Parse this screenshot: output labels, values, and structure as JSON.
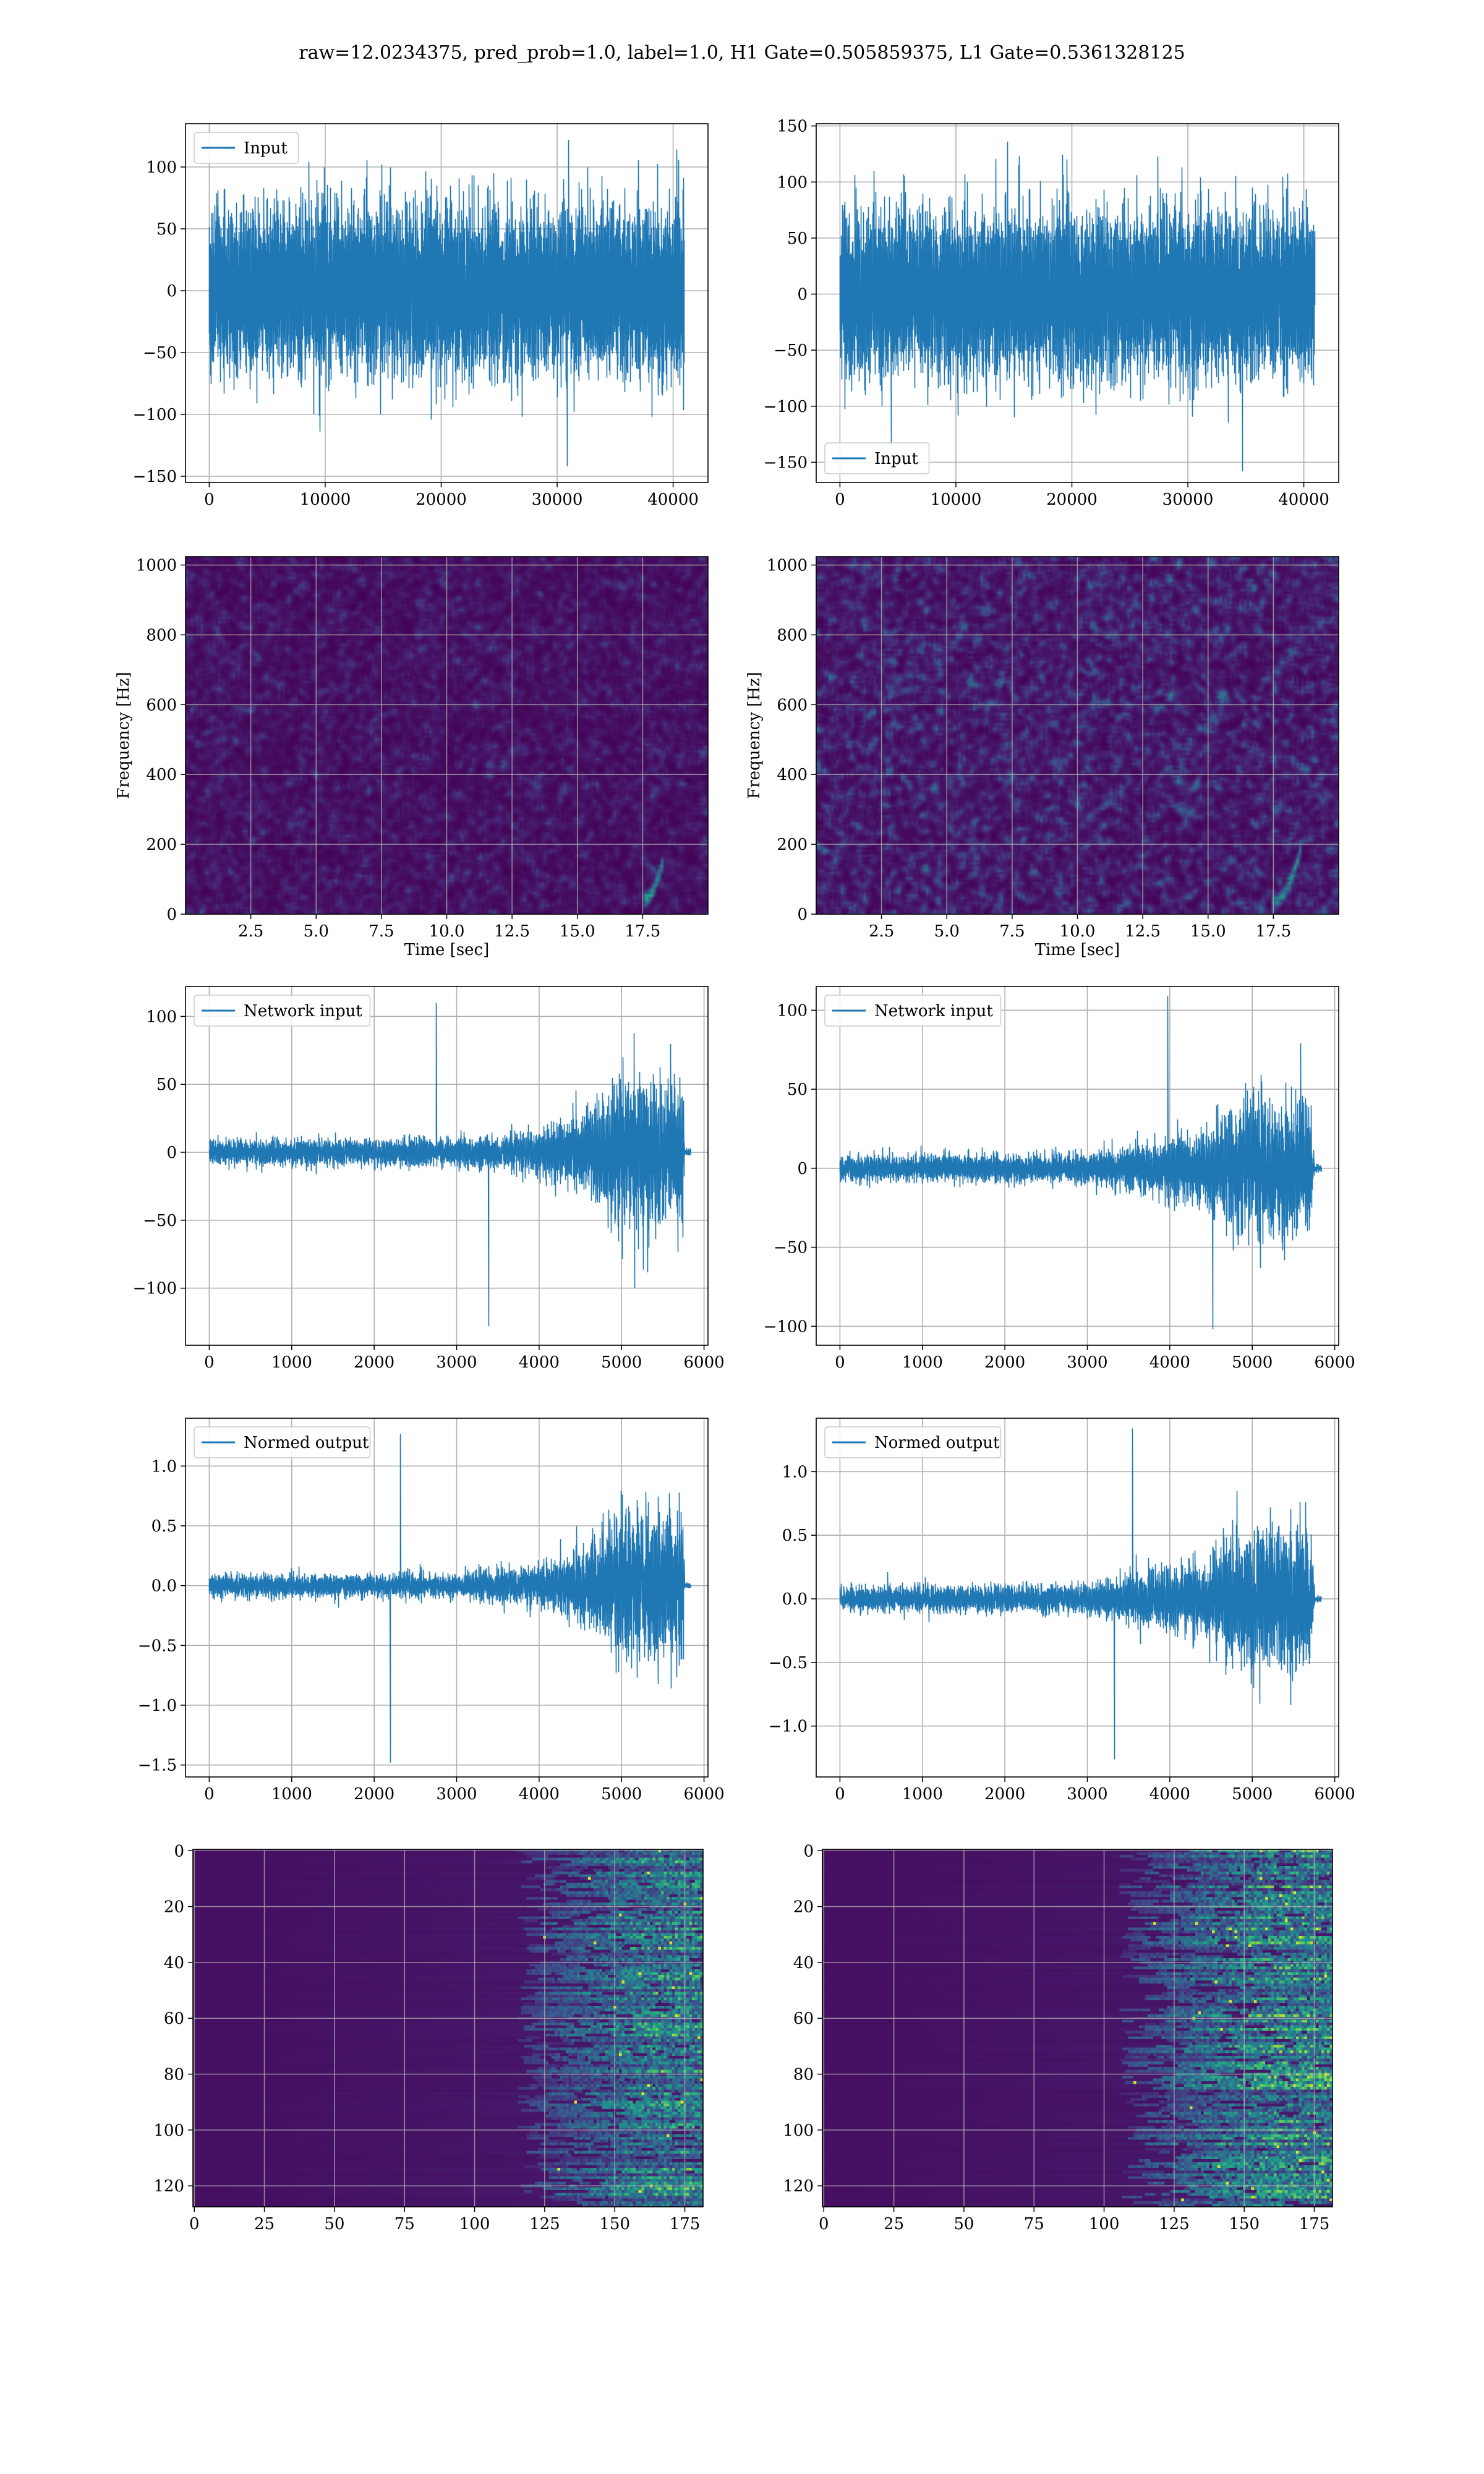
{
  "title": "raw=12.0234375, pred_prob=1.0, label=1.0, H1 Gate=0.505859375, L1 Gate=0.5361328125",
  "colors": {
    "line": "#1f77b4",
    "grid": "#b0b0b0",
    "viridis_low": "#440154",
    "viridis_mid": "#21918c",
    "viridis_high": "#fde725"
  },
  "chart_data": [
    {
      "id": "h1-input",
      "type": "line",
      "grid": true,
      "legend": {
        "label": "Input",
        "placement": "top-left"
      },
      "xlim": [
        -2048,
        43008
      ],
      "ylim": [
        -155,
        135
      ],
      "xticks": [
        0,
        10000,
        20000,
        30000,
        40000
      ],
      "yticks": [
        -150,
        -100,
        -50,
        0,
        50,
        100
      ],
      "series": [
        {
          "name": "Input",
          "kind": "noise",
          "n": 40960,
          "envelope": [
            {
              "x": 0,
              "a": 55
            },
            {
              "x": 40960,
              "a": 55
            }
          ],
          "min": -142,
          "max": 122
        }
      ]
    },
    {
      "id": "l1-input",
      "type": "line",
      "grid": true,
      "legend": {
        "label": "Input",
        "placement": "bottom-left"
      },
      "xlim": [
        -2048,
        43008
      ],
      "ylim": [
        -168,
        152
      ],
      "xticks": [
        0,
        10000,
        20000,
        30000,
        40000
      ],
      "yticks": [
        -150,
        -100,
        -50,
        0,
        50,
        100,
        150
      ],
      "series": [
        {
          "name": "Input",
          "kind": "noise",
          "n": 40960,
          "envelope": [
            {
              "x": 0,
              "a": 60
            },
            {
              "x": 40960,
              "a": 60
            }
          ],
          "min": -158,
          "max": 136
        }
      ]
    },
    {
      "id": "h1-spectrogram",
      "type": "heatmap",
      "grid": true,
      "xlabel": "Time [sec]",
      "ylabel": "Frequency [Hz]",
      "xlim": [
        0,
        20
      ],
      "ylim": [
        0,
        1024
      ],
      "xticks": [
        2.5,
        5.0,
        7.5,
        10.0,
        12.5,
        15.0,
        17.5
      ],
      "yticks": [
        0,
        200,
        400,
        600,
        800,
        1000
      ],
      "brightness": 0.22,
      "chirp": {
        "t_start": 17.5,
        "t_end": 18.3,
        "f_start": 40,
        "f_end": 160
      }
    },
    {
      "id": "l1-spectrogram",
      "type": "heatmap",
      "grid": true,
      "xlabel": "Time [sec]",
      "ylabel": "Frequency [Hz]",
      "xlim": [
        0,
        20
      ],
      "ylim": [
        0,
        1024
      ],
      "xticks": [
        2.5,
        5.0,
        7.5,
        10.0,
        12.5,
        15.0,
        17.5
      ],
      "yticks": [
        0,
        200,
        400,
        600,
        800,
        1000
      ],
      "brightness": 0.34,
      "chirp": {
        "t_start": 17.4,
        "t_end": 18.6,
        "f_start": 30,
        "f_end": 200
      }
    },
    {
      "id": "h1-network-input",
      "type": "line",
      "grid": true,
      "legend": {
        "label": "Network input",
        "placement": "top-left"
      },
      "xlim": [
        -288,
        6048
      ],
      "ylim": [
        -142,
        122
      ],
      "xticks": [
        0,
        1000,
        2000,
        3000,
        4000,
        5000,
        6000
      ],
      "yticks": [
        -100,
        -50,
        0,
        50,
        100
      ],
      "series": [
        {
          "name": "Network input",
          "kind": "noise",
          "n": 5760,
          "envelope": [
            {
              "x": 0,
              "a": 8
            },
            {
              "x": 3000,
              "a": 9
            },
            {
              "x": 4000,
              "a": 14
            },
            {
              "x": 4600,
              "a": 28
            },
            {
              "x": 5000,
              "a": 45
            },
            {
              "x": 5400,
              "a": 48
            },
            {
              "x": 5750,
              "a": 45
            },
            {
              "x": 5760,
              "a": 2
            },
            {
              "x": 5840,
              "a": 2
            }
          ],
          "min": -128,
          "max": 110
        }
      ]
    },
    {
      "id": "l1-network-input",
      "type": "line",
      "grid": true,
      "legend": {
        "label": "Network input",
        "placement": "top-left"
      },
      "xlim": [
        -288,
        6048
      ],
      "ylim": [
        -112,
        115
      ],
      "xticks": [
        0,
        1000,
        2000,
        3000,
        4000,
        5000,
        6000
      ],
      "yticks": [
        -100,
        -50,
        0,
        50,
        100
      ],
      "series": [
        {
          "name": "Network input",
          "kind": "noise",
          "n": 5760,
          "envelope": [
            {
              "x": 0,
              "a": 7
            },
            {
              "x": 3000,
              "a": 8
            },
            {
              "x": 3500,
              "a": 13
            },
            {
              "x": 4400,
              "a": 20
            },
            {
              "x": 5000,
              "a": 42
            },
            {
              "x": 5700,
              "a": 38
            },
            {
              "x": 5760,
              "a": 2
            },
            {
              "x": 5840,
              "a": 2
            }
          ],
          "min": -102,
          "max": 109
        }
      ]
    },
    {
      "id": "h1-normed-output",
      "type": "line",
      "grid": true,
      "legend": {
        "label": "Normed output",
        "placement": "top-left"
      },
      "xlim": [
        -288,
        6048
      ],
      "ylim": [
        -1.6,
        1.4
      ],
      "xticks": [
        0,
        1000,
        2000,
        3000,
        4000,
        5000,
        6000
      ],
      "yticks": [
        -1.5,
        -1.0,
        -0.5,
        0.0,
        0.5,
        1.0
      ],
      "series": [
        {
          "name": "Normed output",
          "kind": "noise",
          "n": 5760,
          "envelope": [
            {
              "x": 0,
              "a": 0.08
            },
            {
              "x": 3000,
              "a": 0.09
            },
            {
              "x": 4000,
              "a": 0.15
            },
            {
              "x": 4600,
              "a": 0.32
            },
            {
              "x": 5000,
              "a": 0.5
            },
            {
              "x": 5400,
              "a": 0.55
            },
            {
              "x": 5750,
              "a": 0.5
            },
            {
              "x": 5760,
              "a": 0.02
            },
            {
              "x": 5840,
              "a": 0.02
            }
          ],
          "min": -1.48,
          "max": 1.27
        }
      ]
    },
    {
      "id": "l1-normed-output",
      "type": "line",
      "grid": true,
      "legend": {
        "label": "Normed output",
        "placement": "top-left"
      },
      "xlim": [
        -288,
        6048
      ],
      "ylim": [
        -1.4,
        1.42
      ],
      "xticks": [
        0,
        1000,
        2000,
        3000,
        4000,
        5000,
        6000
      ],
      "yticks": [
        -1.0,
        -0.5,
        0.0,
        0.5,
        1.0
      ],
      "series": [
        {
          "name": "Normed output",
          "kind": "noise",
          "n": 5760,
          "envelope": [
            {
              "x": 0,
              "a": 0.08
            },
            {
              "x": 3000,
              "a": 0.1
            },
            {
              "x": 3500,
              "a": 0.16
            },
            {
              "x": 4400,
              "a": 0.25
            },
            {
              "x": 5000,
              "a": 0.52
            },
            {
              "x": 5700,
              "a": 0.47
            },
            {
              "x": 5760,
              "a": 0.02
            },
            {
              "x": 5840,
              "a": 0.02
            }
          ],
          "min": -1.26,
          "max": 1.34
        }
      ]
    },
    {
      "id": "h1-feature-map",
      "type": "heatmap",
      "grid": true,
      "xlim": [
        -0.5,
        181.5
      ],
      "ylim": [
        127.5,
        -0.5
      ],
      "xticks": [
        0,
        25,
        50,
        75,
        100,
        125,
        150,
        175
      ],
      "yticks": [
        0,
        20,
        40,
        60,
        80,
        100,
        120
      ],
      "rows": 128,
      "cols": 182,
      "activity_start": 115,
      "activity_peak": 165,
      "peak_level": 0.75
    },
    {
      "id": "l1-feature-map",
      "type": "heatmap",
      "grid": true,
      "xlim": [
        -0.5,
        181.5
      ],
      "ylim": [
        127.5,
        -0.5
      ],
      "xticks": [
        0,
        25,
        50,
        75,
        100,
        125,
        150,
        175
      ],
      "yticks": [
        0,
        20,
        40,
        60,
        80,
        100,
        120
      ],
      "rows": 128,
      "cols": 182,
      "activity_start": 105,
      "activity_peak": 160,
      "peak_level": 0.85
    }
  ]
}
